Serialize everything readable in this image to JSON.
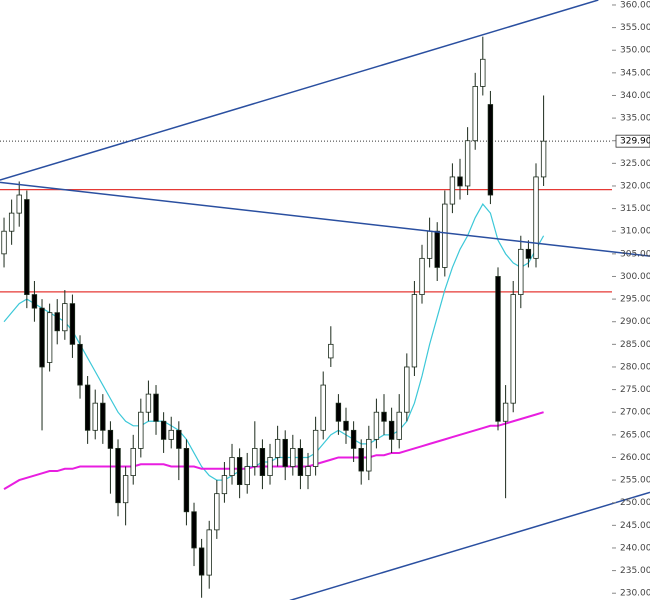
{
  "chart_data": {
    "type": "candlestick",
    "xlim": [
      -0.53,
      85
    ],
    "ylim": [
      228.5,
      361.1
    ],
    "yticks": [
      {
        "value": 230,
        "label": "230.00"
      },
      {
        "value": 235,
        "label": "235.00"
      },
      {
        "value": 240,
        "label": "240.00"
      },
      {
        "value": 245,
        "label": "245.00"
      },
      {
        "value": 250,
        "label": "250.00"
      },
      {
        "value": 255,
        "label": "255.00"
      },
      {
        "value": 260,
        "label": "260.00"
      },
      {
        "value": 265,
        "label": "265.00"
      },
      {
        "value": 270,
        "label": "270.00"
      },
      {
        "value": 275,
        "label": "275.00"
      },
      {
        "value": 280,
        "label": "280.00"
      },
      {
        "value": 285,
        "label": "285.00"
      },
      {
        "value": 290,
        "label": "290.00"
      },
      {
        "value": 295,
        "label": "295.00"
      },
      {
        "value": 300,
        "label": "300.00"
      },
      {
        "value": 305,
        "label": "305.00"
      },
      {
        "value": 310,
        "label": "310.00"
      },
      {
        "value": 315,
        "label": "315.00"
      },
      {
        "value": 320,
        "label": "320.00"
      },
      {
        "value": 325,
        "label": "325.00"
      },
      {
        "value": 330,
        "label": "330.00"
      },
      {
        "value": 335,
        "label": "335.00"
      },
      {
        "value": 340,
        "label": "340.00"
      },
      {
        "value": 345,
        "label": "345.00"
      },
      {
        "value": 350,
        "label": "350.00"
      },
      {
        "value": 355,
        "label": "355.00"
      },
      {
        "value": 360,
        "label": "360.00"
      }
    ],
    "up_color": "#ffffff",
    "down_color": "#000000",
    "wick_color": "#1b2a1b",
    "open": [
      305,
      310,
      314,
      317,
      296,
      293,
      281,
      292,
      288,
      294,
      285,
      276,
      266,
      272,
      266,
      262,
      250,
      256,
      262,
      270,
      274,
      268,
      264,
      266,
      262,
      248,
      240,
      234,
      244,
      252,
      256,
      260,
      254,
      258,
      262,
      256,
      260,
      264,
      258,
      262,
      256,
      258,
      266,
      282,
      272,
      268,
      266,
      262,
      257,
      264,
      270,
      268,
      264,
      270,
      280,
      296,
      304,
      310,
      302,
      316,
      322,
      320,
      330,
      342,
      338,
      300,
      268,
      272,
      296,
      306,
      304,
      322
    ],
    "high": [
      313,
      317,
      321,
      319,
      299,
      295,
      294,
      295,
      297,
      296,
      287,
      278,
      275,
      274,
      268,
      264,
      258,
      265,
      273,
      277,
      276,
      270,
      269,
      268,
      264,
      250,
      242,
      246,
      255,
      259,
      263,
      262,
      261,
      268,
      264,
      263,
      267,
      266,
      265,
      264,
      261,
      269,
      279,
      289,
      274,
      271,
      268,
      264,
      267,
      273,
      274,
      271,
      274,
      283,
      299,
      307,
      313,
      312,
      319,
      325,
      326,
      333,
      345,
      353,
      341,
      302,
      276,
      299,
      309,
      308,
      325,
      340
    ],
    "low": [
      302,
      307,
      311,
      293,
      290,
      266,
      279,
      285,
      286,
      282,
      273,
      263,
      264,
      263,
      252,
      247,
      245,
      254,
      260,
      268,
      265,
      261,
      262,
      255,
      245,
      236,
      229,
      231,
      242,
      250,
      254,
      251,
      252,
      256,
      253,
      254,
      258,
      255,
      256,
      253,
      253,
      256,
      264,
      280,
      265,
      263,
      259,
      254,
      255,
      262,
      265,
      261,
      262,
      268,
      278,
      294,
      302,
      299,
      300,
      314,
      317,
      318,
      328,
      340,
      316,
      266,
      251,
      270,
      293,
      302,
      302,
      320
    ],
    "close": [
      310,
      314,
      318,
      296,
      293,
      280,
      292,
      288,
      294,
      285,
      276,
      266,
      272,
      266,
      262,
      250,
      256,
      262,
      270,
      274,
      268,
      264,
      266,
      262,
      248,
      240,
      234,
      244,
      252,
      256,
      260,
      254,
      258,
      262,
      256,
      260,
      264,
      258,
      262,
      256,
      258,
      266,
      276,
      285,
      268,
      266,
      262,
      257,
      264,
      270,
      268,
      264,
      270,
      280,
      296,
      304,
      310,
      302,
      316,
      322,
      320,
      330,
      342,
      348,
      318,
      268,
      272,
      296,
      306,
      304,
      322,
      329.9
    ],
    "moving_averages": [
      {
        "color": "#3cc8d8",
        "values": [
          290,
          292,
          294,
          295,
          294,
          293,
          292,
          291,
          290,
          288,
          285,
          282,
          279,
          276,
          273,
          270,
          268,
          267,
          267,
          268,
          268,
          268,
          267,
          266,
          264,
          261,
          258,
          256,
          255,
          255,
          256,
          257,
          258,
          258,
          259,
          259,
          260,
          260,
          260,
          260,
          260,
          261,
          263,
          265,
          266,
          265,
          264,
          263,
          263,
          264,
          265,
          265,
          266,
          268,
          272,
          278,
          285,
          291,
          297,
          302,
          306,
          309,
          313,
          316,
          314,
          308,
          305,
          303,
          302,
          303,
          306,
          309
        ]
      },
      {
        "color": "#e81ee0",
        "values": [
          253,
          254,
          255,
          255.5,
          256,
          256.5,
          257,
          257,
          257.5,
          257.5,
          258,
          258,
          258,
          258,
          258,
          258,
          258,
          258,
          258.5,
          258.5,
          258.5,
          258.5,
          258,
          258,
          258,
          258,
          257.5,
          257.5,
          257.5,
          257.5,
          257.5,
          257.5,
          257.5,
          258,
          258,
          258,
          258,
          258,
          258,
          258,
          258,
          258.5,
          259,
          259.5,
          260,
          260,
          260,
          260,
          260,
          260.5,
          260.5,
          261,
          261,
          261.5,
          262,
          262.5,
          263,
          263.5,
          264,
          264.5,
          265,
          265.5,
          266,
          266.5,
          267,
          267,
          267.5,
          268,
          268.5,
          269,
          269.5,
          270
        ]
      }
    ],
    "levels": [
      {
        "value": 319.2,
        "color": "#e53935"
      },
      {
        "value": 296.6,
        "color": "#e53935"
      }
    ],
    "trendlines": [
      {
        "x": [
          -0.53,
          78.2
        ],
        "y": [
          321.3,
          361.1
        ],
        "color": "#2a4fa0"
      },
      {
        "x": [
          -0.53,
          85
        ],
        "y": [
          320.8,
          304.5
        ],
        "color": "#2a4fa0"
      },
      {
        "x": [
          37.6,
          85
        ],
        "y": [
          228.4,
          252.3
        ],
        "color": "#2a4fa0"
      }
    ],
    "last_price": {
      "value": 329.9,
      "label": "329.90"
    }
  }
}
